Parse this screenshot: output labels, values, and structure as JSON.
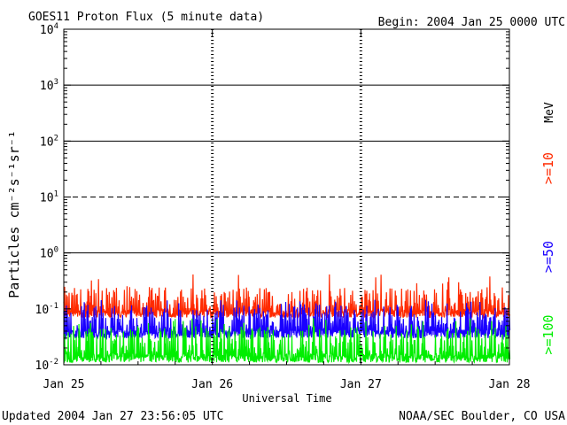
{
  "chart_data": {
    "type": "line",
    "title": "GOES11 Proton Flux (5 minute data)",
    "begin_label": "Begin: 2004 Jan 25 0000 UTC",
    "xlabel": "Universal Time",
    "ylabel": "Particles cm⁻²s⁻¹sr⁻¹",
    "y_scale": "log",
    "ylim": [
      0.01,
      10000
    ],
    "y_tick_labels": [
      {
        "base": "10",
        "exp": "-2",
        "value": 0.01
      },
      {
        "base": "10",
        "exp": "-1",
        "value": 0.1
      },
      {
        "base": "10",
        "exp": "0",
        "value": 1
      },
      {
        "base": "10",
        "exp": "1",
        "value": 10
      },
      {
        "base": "10",
        "exp": "2",
        "value": 100
      },
      {
        "base": "10",
        "exp": "3",
        "value": 1000
      },
      {
        "base": "10",
        "exp": "4",
        "value": 10000
      }
    ],
    "x_range_days": [
      0,
      3
    ],
    "x_tick_labels": [
      {
        "label": "Jan 25",
        "day": 0
      },
      {
        "label": "Jan 26",
        "day": 1
      },
      {
        "label": "Jan 27",
        "day": 2
      },
      {
        "label": "Jan 28",
        "day": 3
      }
    ],
    "threshold_lines": [
      {
        "value": 1,
        "style": "solid"
      },
      {
        "value": 10,
        "style": "dashed"
      },
      {
        "value": 100,
        "style": "solid"
      },
      {
        "value": 1000,
        "style": "solid"
      }
    ],
    "series": [
      {
        "name": ">=10",
        "color": "#ff2a00",
        "typical_low": 0.07,
        "typical_high": 0.25,
        "peak": 0.42
      },
      {
        "name": ">=50",
        "color": "#1a00ff",
        "typical_low": 0.03,
        "typical_high": 0.12,
        "peak": 0.15
      },
      {
        "name": ">=100",
        "color": "#00ee00",
        "typical_low": 0.011,
        "typical_high": 0.05,
        "peak": 0.07
      }
    ],
    "energy_unit": "MeV",
    "grid": false
  },
  "footer": {
    "updated": "Updated 2004 Jan 27 23:56:05 UTC",
    "source": "NOAA/SEC Boulder, CO USA"
  }
}
